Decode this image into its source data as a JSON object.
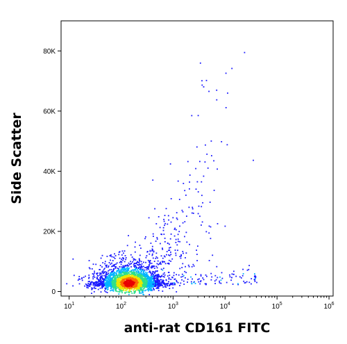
{
  "chart_data": {
    "type": "scatter",
    "style": "density-dot-plot",
    "title": "",
    "xlabel": "anti-rat CD161 FITC",
    "ylabel": "Side Scatter",
    "x_scale": "log",
    "xlim": [
      7,
      1200000
    ],
    "ylim": [
      -1500,
      90000
    ],
    "grid": false,
    "legend": "none",
    "x_ticks": [
      {
        "base": "10",
        "exp": "1"
      },
      {
        "base": "10",
        "exp": "2"
      },
      {
        "base": "10",
        "exp": "3"
      },
      {
        "base": "10",
        "exp": "4"
      },
      {
        "base": "10",
        "exp": "5"
      },
      {
        "base": "10",
        "exp": "6"
      }
    ],
    "x_tick_values": [
      10,
      100,
      1000,
      10000,
      100000,
      1000000
    ],
    "y_ticks": [
      "0",
      "20K",
      "40K",
      "60K",
      "80K"
    ],
    "y_tick_values": [
      0,
      20000,
      40000,
      60000,
      80000
    ],
    "density_colors": [
      "#1a1aff",
      "#00b4ff",
      "#2ee08a",
      "#e8e800",
      "#ff6a00",
      "#e80000"
    ],
    "populations": [
      {
        "name": "",
        "center_x": 140,
        "center_y": 3000,
        "count": 3000
      },
      {
        "name": "",
        "center_x": 25000,
        "center_y": 5500,
        "count": 130
      },
      {
        "name": "",
        "center_x": 3000,
        "center_y": 30000,
        "count": 220
      }
    ]
  }
}
